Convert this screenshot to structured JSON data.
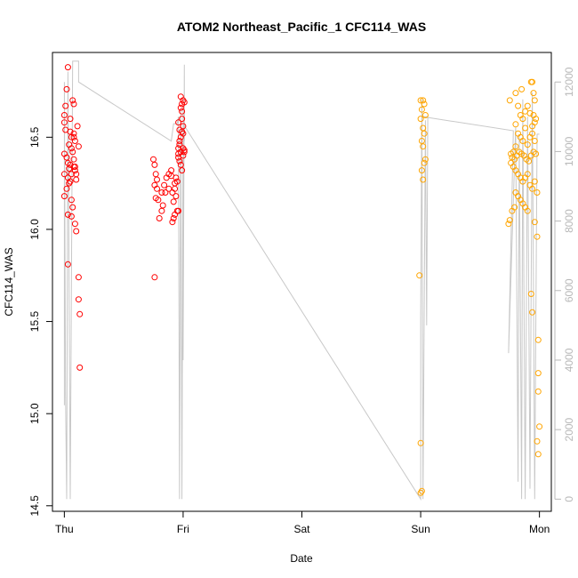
{
  "chart_data": {
    "type": "scatter",
    "title": "ATOM2 Northeast_Pacific_1 CFC114_WAS",
    "xlabel": "Date",
    "ylabel": "CFC114_WAS",
    "x_unit": "days",
    "xlim": [
      -0.1,
      4.1
    ],
    "ylim": [
      14.47,
      16.96
    ],
    "x_ticks": [
      {
        "value": 0,
        "label": "Thu"
      },
      {
        "value": 1,
        "label": "Fri"
      },
      {
        "value": 2,
        "label": "Sat"
      },
      {
        "value": 3,
        "label": "Sun"
      },
      {
        "value": 4,
        "label": "Mon"
      }
    ],
    "y_ticks": [
      {
        "value": 14.5,
        "label": "14.5"
      },
      {
        "value": 15.0,
        "label": "15.0"
      },
      {
        "value": 15.5,
        "label": "15.5"
      },
      {
        "value": 16.0,
        "label": "16.0"
      },
      {
        "value": 16.5,
        "label": "16.5"
      }
    ],
    "y2_ylim": [
      -350,
      12850
    ],
    "y2_ticks": [
      {
        "value": 0,
        "label": "0"
      },
      {
        "value": 2000,
        "label": "2000"
      },
      {
        "value": 4000,
        "label": "4000"
      },
      {
        "value": 6000,
        "label": "6000"
      },
      {
        "value": 8000,
        "label": "8000"
      },
      {
        "value": 10000,
        "label": "10000"
      },
      {
        "value": 12000,
        "label": "12000"
      }
    ],
    "grid": false,
    "series_colors": {
      "red": "#ff0000",
      "orange": "#ffa500",
      "altitude": "#c8c8c8"
    },
    "series": [
      {
        "color": "red",
        "points": [
          [
            0.03,
            16.88
          ],
          [
            0.0,
            16.62
          ],
          [
            0.02,
            16.76
          ],
          [
            0.01,
            16.67
          ],
          [
            0.0,
            16.58
          ],
          [
            0.01,
            16.54
          ],
          [
            0.05,
            16.6
          ],
          [
            0.07,
            16.7
          ],
          [
            0.08,
            16.68
          ],
          [
            0.11,
            16.56
          ],
          [
            0.05,
            16.53
          ],
          [
            0.06,
            16.5
          ],
          [
            0.08,
            16.52
          ],
          [
            0.09,
            16.48
          ],
          [
            0.04,
            16.46
          ],
          [
            0.06,
            16.44
          ],
          [
            0.07,
            16.42
          ],
          [
            0.0,
            16.41
          ],
          [
            0.02,
            16.39
          ],
          [
            0.03,
            16.36
          ],
          [
            0.05,
            16.35
          ],
          [
            0.08,
            16.34
          ],
          [
            0.09,
            16.32
          ],
          [
            0.0,
            16.3
          ],
          [
            0.03,
            16.28
          ],
          [
            0.05,
            16.26
          ],
          [
            0.04,
            16.25
          ],
          [
            0.02,
            16.22
          ],
          [
            0.0,
            16.18
          ],
          [
            0.06,
            16.16
          ],
          [
            0.07,
            16.12
          ],
          [
            0.03,
            16.08
          ],
          [
            0.06,
            16.07
          ],
          [
            0.09,
            16.03
          ],
          [
            0.1,
            15.99
          ],
          [
            0.03,
            15.81
          ],
          [
            0.12,
            15.74
          ],
          [
            0.12,
            15.62
          ],
          [
            0.13,
            15.54
          ],
          [
            0.13,
            15.25
          ],
          [
            0.09,
            16.34
          ],
          [
            0.1,
            16.3
          ],
          [
            0.08,
            16.38
          ],
          [
            0.04,
            16.33
          ],
          [
            0.08,
            16.5
          ],
          [
            0.1,
            16.27
          ],
          [
            0.06,
            16.3
          ],
          [
            0.12,
            16.45
          ],
          [
            0.96,
            16.39
          ],
          [
            0.97,
            16.37
          ],
          [
            0.98,
            16.35
          ],
          [
            0.99,
            16.32
          ],
          [
            1.0,
            16.44
          ],
          [
            1.01,
            16.43
          ],
          [
            0.98,
            16.42
          ],
          [
            1.0,
            16.4
          ],
          [
            0.96,
            16.41
          ],
          [
            1.01,
            16.42
          ],
          [
            0.97,
            16.48
          ],
          [
            0.98,
            16.5
          ],
          [
            1.0,
            16.52
          ],
          [
            0.99,
            16.53
          ],
          [
            1.0,
            16.56
          ],
          [
            0.97,
            16.54
          ],
          [
            0.96,
            16.58
          ],
          [
            0.99,
            16.6
          ],
          [
            0.98,
            16.66
          ],
          [
            0.99,
            16.68
          ],
          [
            1.0,
            16.7
          ],
          [
            0.98,
            16.72
          ],
          [
            1.01,
            16.69
          ],
          [
            0.99,
            16.64
          ],
          [
            0.97,
            16.46
          ],
          [
            0.96,
            16.44
          ],
          [
            0.75,
            16.38
          ],
          [
            0.76,
            16.35
          ],
          [
            0.77,
            16.3
          ],
          [
            0.78,
            16.27
          ],
          [
            0.76,
            16.24
          ],
          [
            0.77,
            16.17
          ],
          [
            0.79,
            16.16
          ],
          [
            0.78,
            16.22
          ],
          [
            0.8,
            16.06
          ],
          [
            0.82,
            16.1
          ],
          [
            0.83,
            16.13
          ],
          [
            0.82,
            16.2
          ],
          [
            0.84,
            16.24
          ],
          [
            0.86,
            16.28
          ],
          [
            0.88,
            16.3
          ],
          [
            0.9,
            16.29
          ],
          [
            0.9,
            16.32
          ],
          [
            0.91,
            16.2
          ],
          [
            0.92,
            16.15
          ],
          [
            0.93,
            16.22
          ],
          [
            0.94,
            16.18
          ],
          [
            0.93,
            16.25
          ],
          [
            0.94,
            16.28
          ],
          [
            0.95,
            16.26
          ],
          [
            0.95,
            16.1
          ],
          [
            0.96,
            16.1
          ],
          [
            0.93,
            16.08
          ],
          [
            0.92,
            16.06
          ],
          [
            0.91,
            16.04
          ],
          [
            0.85,
            16.2
          ],
          [
            0.88,
            16.22
          ],
          [
            0.76,
            15.74
          ]
        ]
      },
      {
        "color": "orange",
        "points": [
          [
            3.0,
            16.7
          ],
          [
            3.02,
            16.7
          ],
          [
            3.03,
            16.68
          ],
          [
            3.01,
            16.65
          ],
          [
            3.0,
            16.6
          ],
          [
            3.04,
            16.62
          ],
          [
            3.02,
            16.55
          ],
          [
            3.03,
            16.52
          ],
          [
            3.01,
            16.48
          ],
          [
            3.02,
            16.45
          ],
          [
            3.04,
            16.38
          ],
          [
            3.03,
            16.36
          ],
          [
            3.01,
            16.32
          ],
          [
            3.02,
            16.27
          ],
          [
            2.99,
            15.75
          ],
          [
            3.0,
            14.84
          ],
          [
            3.01,
            14.58
          ],
          [
            3.0,
            14.57
          ],
          [
            3.75,
            16.7
          ],
          [
            3.8,
            16.74
          ],
          [
            3.85,
            16.76
          ],
          [
            3.93,
            16.8
          ],
          [
            3.94,
            16.8
          ],
          [
            3.95,
            16.74
          ],
          [
            3.96,
            16.7
          ],
          [
            3.9,
            16.67
          ],
          [
            3.88,
            16.64
          ],
          [
            3.82,
            16.67
          ],
          [
            3.84,
            16.62
          ],
          [
            3.86,
            16.6
          ],
          [
            3.92,
            16.63
          ],
          [
            3.95,
            16.62
          ],
          [
            3.97,
            16.6
          ],
          [
            3.96,
            16.58
          ],
          [
            3.94,
            16.56
          ],
          [
            3.88,
            16.55
          ],
          [
            3.8,
            16.57
          ],
          [
            3.82,
            16.52
          ],
          [
            3.84,
            16.5
          ],
          [
            3.86,
            16.48
          ],
          [
            3.92,
            16.5
          ],
          [
            3.94,
            16.52
          ],
          [
            3.96,
            16.48
          ],
          [
            3.9,
            16.46
          ],
          [
            3.8,
            16.45
          ],
          [
            3.78,
            16.42
          ],
          [
            3.76,
            16.41
          ],
          [
            3.77,
            16.39
          ],
          [
            3.79,
            16.38
          ],
          [
            3.81,
            16.4
          ],
          [
            3.83,
            16.42
          ],
          [
            3.85,
            16.41
          ],
          [
            3.87,
            16.4
          ],
          [
            3.89,
            16.38
          ],
          [
            3.91,
            16.37
          ],
          [
            3.93,
            16.4
          ],
          [
            3.95,
            16.42
          ],
          [
            3.97,
            16.41
          ],
          [
            3.76,
            16.36
          ],
          [
            3.78,
            16.34
          ],
          [
            3.8,
            16.32
          ],
          [
            3.82,
            16.3
          ],
          [
            3.84,
            16.28
          ],
          [
            3.86,
            16.26
          ],
          [
            3.88,
            16.28
          ],
          [
            3.9,
            16.3
          ],
          [
            3.92,
            16.24
          ],
          [
            3.94,
            16.22
          ],
          [
            3.96,
            16.26
          ],
          [
            3.98,
            16.2
          ],
          [
            3.8,
            16.2
          ],
          [
            3.82,
            16.18
          ],
          [
            3.84,
            16.16
          ],
          [
            3.86,
            16.14
          ],
          [
            3.88,
            16.12
          ],
          [
            3.9,
            16.1
          ],
          [
            3.79,
            16.12
          ],
          [
            3.77,
            16.1
          ],
          [
            3.75,
            16.05
          ],
          [
            3.74,
            16.03
          ],
          [
            3.96,
            16.04
          ],
          [
            3.98,
            15.96
          ],
          [
            3.93,
            15.65
          ],
          [
            3.94,
            15.55
          ],
          [
            3.99,
            15.4
          ],
          [
            3.99,
            15.22
          ],
          [
            3.99,
            15.12
          ],
          [
            4.0,
            14.93
          ],
          [
            3.98,
            14.85
          ],
          [
            3.99,
            14.78
          ]
        ]
      }
    ],
    "altitude_line": [
      [
        0.0,
        2700
      ],
      [
        0.0,
        12000
      ],
      [
        0.01,
        3000
      ],
      [
        0.02,
        0
      ],
      [
        0.03,
        12300
      ],
      [
        0.05,
        0
      ],
      [
        0.07,
        12600
      ],
      [
        0.1,
        12600
      ],
      [
        0.12,
        12600
      ],
      [
        0.12,
        12200
      ],
      [
        0.12,
        12000
      ],
      [
        0.9,
        10300
      ],
      [
        0.92,
        10800
      ],
      [
        0.95,
        10800
      ],
      [
        0.96,
        11000
      ],
      [
        0.97,
        0
      ],
      [
        0.98,
        11200
      ],
      [
        0.99,
        0
      ],
      [
        1.0,
        11200
      ],
      [
        1.0,
        4000
      ],
      [
        1.01,
        12500
      ],
      [
        1.01,
        10300
      ],
      [
        1.0,
        10800
      ],
      [
        3.0,
        0
      ],
      [
        3.0,
        5200
      ],
      [
        3.01,
        11500
      ],
      [
        3.02,
        0
      ],
      [
        3.04,
        10900
      ],
      [
        3.05,
        5000
      ],
      [
        3.06,
        11000
      ],
      [
        3.02,
        11000
      ],
      [
        3.78,
        10600
      ],
      [
        3.74,
        4200
      ],
      [
        3.8,
        10700
      ],
      [
        3.82,
        500
      ],
      [
        3.83,
        10500
      ],
      [
        3.85,
        0
      ],
      [
        3.86,
        11500
      ],
      [
        3.88,
        0
      ],
      [
        3.9,
        11000
      ],
      [
        3.92,
        300
      ],
      [
        3.94,
        11700
      ],
      [
        3.96,
        0
      ],
      [
        3.98,
        10500
      ],
      [
        4.0,
        10500
      ]
    ]
  }
}
